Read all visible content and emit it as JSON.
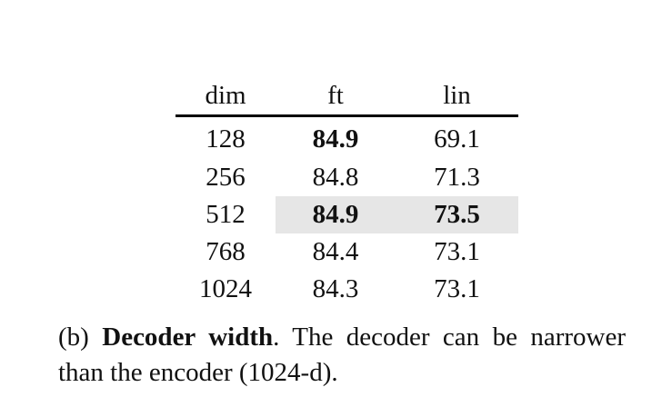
{
  "table": {
    "headers": [
      "dim",
      "ft",
      "lin"
    ],
    "rows": [
      {
        "dim": "128",
        "ft": "84.9",
        "lin": "69.1",
        "ft_bold": true,
        "lin_bold": false,
        "highlight": false
      },
      {
        "dim": "256",
        "ft": "84.8",
        "lin": "71.3",
        "ft_bold": false,
        "lin_bold": false,
        "highlight": false
      },
      {
        "dim": "512",
        "ft": "84.9",
        "lin": "73.5",
        "ft_bold": true,
        "lin_bold": true,
        "highlight": true
      },
      {
        "dim": "768",
        "ft": "84.4",
        "lin": "73.1",
        "ft_bold": false,
        "lin_bold": false,
        "highlight": false
      },
      {
        "dim": "1024",
        "ft": "84.3",
        "lin": "73.1",
        "ft_bold": false,
        "lin_bold": false,
        "highlight": false
      }
    ],
    "highlight_color": "#e6e6e6"
  },
  "caption": {
    "label": "(b)",
    "title": "Decoder width",
    "text": ". The decoder can be narrower than the encoder (1024-d)."
  }
}
